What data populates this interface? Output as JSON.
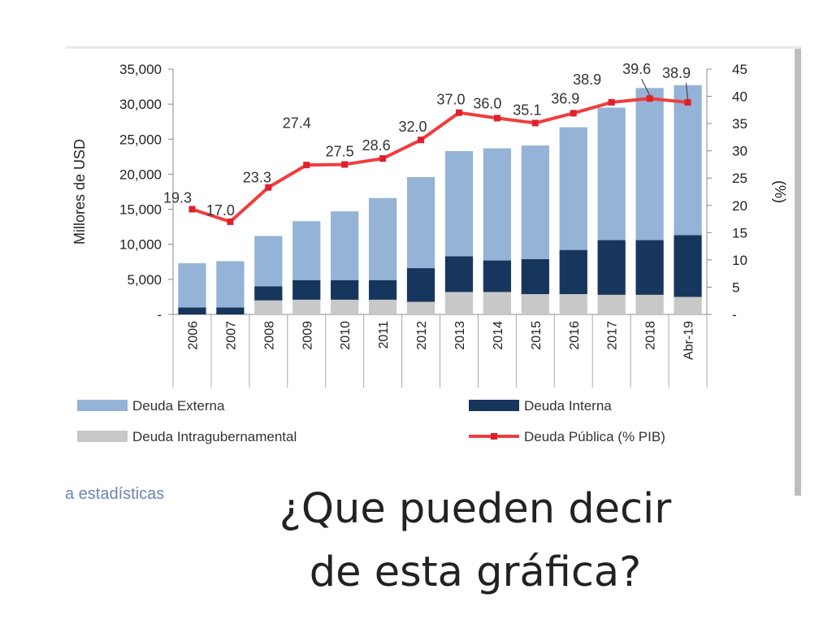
{
  "chart_data": {
    "type": "bar",
    "stacked": true,
    "categories": [
      "2006",
      "2007",
      "2008",
      "2009",
      "2010",
      "2011",
      "2012",
      "2013",
      "2014",
      "2015",
      "2016",
      "2017",
      "2018",
      "Abr-19"
    ],
    "series": [
      {
        "name": "Deuda Intragubernamental",
        "color": "#c8c8c8",
        "values": [
          0,
          0,
          2000,
          2100,
          2100,
          2100,
          1800,
          3200,
          3200,
          2900,
          2900,
          2800,
          2800,
          2500
        ]
      },
      {
        "name": "Deuda Interna",
        "color": "#17365d",
        "values": [
          1000,
          1000,
          2000,
          2800,
          2800,
          2800,
          4800,
          5100,
          4500,
          5000,
          6300,
          7800,
          7800,
          8800
        ]
      },
      {
        "name": "Deuda Externa",
        "color": "#95b3d7",
        "values": [
          6300,
          6600,
          7200,
          8400,
          9800,
          11700,
          13000,
          15000,
          16000,
          16200,
          17500,
          18900,
          21700,
          21400
        ]
      }
    ],
    "line": {
      "name": "Deuda Pública (% PIB)",
      "color": "#ee3e3e",
      "axis": "right",
      "values": [
        19.3,
        17.0,
        23.3,
        27.4,
        27.5,
        28.6,
        32.0,
        37.0,
        36.0,
        35.1,
        36.9,
        38.9,
        39.6,
        38.9
      ],
      "labels": [
        "19.3",
        "17.0",
        "23.3",
        "27.4",
        "27.5",
        "28.6",
        "32.0",
        "37.0",
        "36.0",
        "35.1",
        "36.9",
        "38.9",
        "39.6",
        "38.9"
      ]
    },
    "ylabel": "Millores de USD",
    "y2label": "(%)",
    "ylim": [
      0,
      35000
    ],
    "y2lim": [
      0,
      45
    ],
    "yticks": [
      "-",
      "5,000",
      "10,000",
      "15,000",
      "20,000",
      "25,000",
      "30,000",
      "35,000"
    ],
    "y2ticks": [
      "-",
      "5",
      "10",
      "15",
      "20",
      "25",
      "30",
      "35",
      "40",
      "45"
    ],
    "legend": [
      {
        "label": "Deuda Externa",
        "kind": "bar",
        "color": "#95b3d7"
      },
      {
        "label": "Deuda Interna",
        "kind": "bar",
        "color": "#17365d"
      },
      {
        "label": "Deuda Intragubernamental",
        "kind": "bar",
        "color": "#c8c8c8"
      },
      {
        "label": "Deuda Pública (% PIB)",
        "kind": "line",
        "color": "#ee3e3e"
      }
    ],
    "legend_position": "bottom",
    "grid": false
  },
  "source_fragment": "a estadísticas",
  "question": {
    "line1": "¿Que pueden decir",
    "line2": "de esta gráfica?"
  }
}
